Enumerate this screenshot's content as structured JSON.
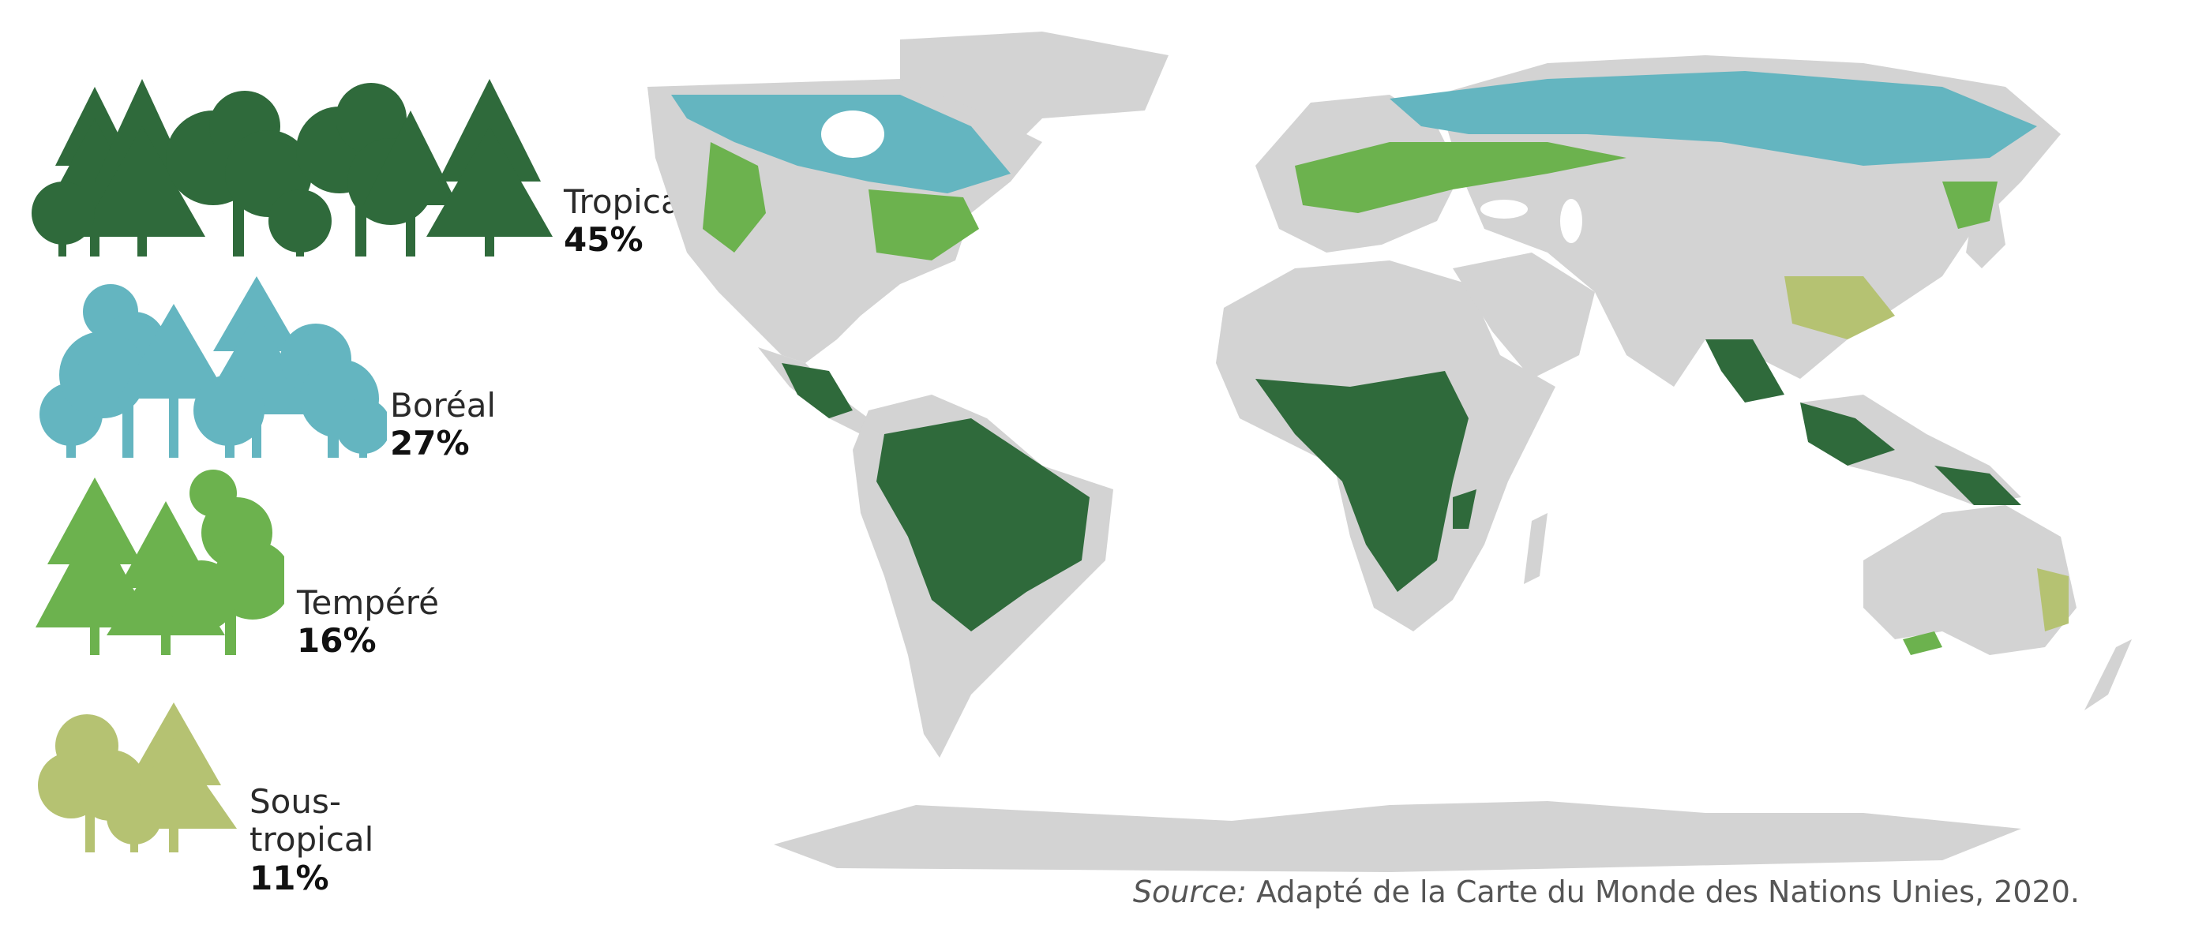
{
  "legend": [
    {
      "name": "Tropical",
      "percent": "45%",
      "color": "#2f6a3b"
    },
    {
      "name": "Boréal",
      "percent": "27%",
      "color": "#64b5c0"
    },
    {
      "name": "Tempéré",
      "percent": "16%",
      "color": "#6cb24e"
    },
    {
      "name": "Sous-tropical",
      "percent": "11%",
      "color": "#b5c272"
    }
  ],
  "map": {
    "land_color": "#d3d3d3",
    "ocean_color": "#ffffff"
  },
  "source": {
    "label": "Source:",
    "text": "Adapté de la Carte du Monde des Nations Unies, 2020."
  }
}
